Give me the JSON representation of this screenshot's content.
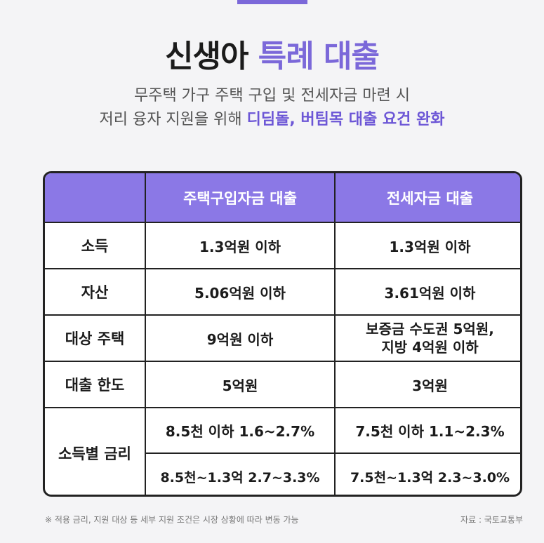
{
  "title": {
    "main": "신생아 ",
    "accent": "특례 대출"
  },
  "subtitle": {
    "line1": "무주택 가구 주택 구입 및 전세자금 마련 시",
    "line2_prefix": "저리 융자 지원을 위해 ",
    "line2_highlight": "디딤돌, 버팀목 대출 요건 완화"
  },
  "table": {
    "headers": [
      "",
      "주택구입자금 대출",
      "전세자금 대출"
    ],
    "rows": [
      {
        "label": "소득",
        "purchase": "1.3억원 이하",
        "jeonse": "1.3억원 이하"
      },
      {
        "label": "자산",
        "purchase": "5.06억원 이하",
        "jeonse": "3.61억원 이하"
      },
      {
        "label": "대상 주택",
        "purchase": "9억원 이하",
        "jeonse_line1": "보증금 수도권 5억원,",
        "jeonse_line2": "지방 4억원 이하"
      },
      {
        "label": "대출 한도",
        "purchase": "5억원",
        "jeonse": "3억원"
      }
    ],
    "rate": {
      "label": "소득별 금리",
      "purchase_1": "8.5천 이하 1.6~2.7%",
      "jeonse_1": "7.5천 이하 1.1~2.3%",
      "purchase_2": "8.5천~1.3억 2.7~3.3%",
      "jeonse_2": "7.5천~1.3억 2.3~3.0%"
    }
  },
  "footnote": "※ 적용 금리, 지원 대상 등 세부 지원 조건은 시장 상황에 따라 변동 가능",
  "source": "자료 : 국토교통부",
  "colors": {
    "accent": "#7b68d9",
    "header_bg": "#8b78e6"
  }
}
